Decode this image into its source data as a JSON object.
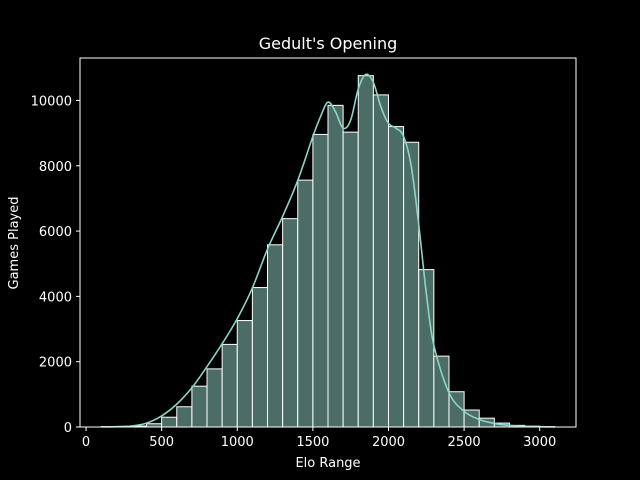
{
  "chart_data": {
    "type": "bar",
    "title": "Gedult's Opening",
    "xlabel": "Elo Range",
    "ylabel": "Games Played",
    "xlim": [
      -40,
      3240
    ],
    "ylim": [
      0,
      11300
    ],
    "x_ticks": [
      0,
      500,
      1000,
      1500,
      2000,
      2500,
      3000
    ],
    "y_ticks": [
      0,
      2000,
      4000,
      6000,
      8000,
      10000
    ],
    "bin_width": 100,
    "bins": [
      {
        "x0": 100,
        "x1": 200,
        "value": 10
      },
      {
        "x0": 200,
        "x1": 300,
        "value": 15
      },
      {
        "x0": 300,
        "x1": 400,
        "value": 30
      },
      {
        "x0": 400,
        "x1": 500,
        "value": 100
      },
      {
        "x0": 500,
        "x1": 600,
        "value": 300
      },
      {
        "x0": 600,
        "x1": 700,
        "value": 620
      },
      {
        "x0": 700,
        "x1": 800,
        "value": 1250
      },
      {
        "x0": 800,
        "x1": 900,
        "value": 1780
      },
      {
        "x0": 900,
        "x1": 1000,
        "value": 2530
      },
      {
        "x0": 1000,
        "x1": 1100,
        "value": 3260
      },
      {
        "x0": 1100,
        "x1": 1200,
        "value": 4270
      },
      {
        "x0": 1200,
        "x1": 1300,
        "value": 5580
      },
      {
        "x0": 1300,
        "x1": 1400,
        "value": 6380
      },
      {
        "x0": 1400,
        "x1": 1500,
        "value": 7560
      },
      {
        "x0": 1500,
        "x1": 1600,
        "value": 8960
      },
      {
        "x0": 1600,
        "x1": 1700,
        "value": 9850
      },
      {
        "x0": 1700,
        "x1": 1800,
        "value": 9030
      },
      {
        "x0": 1800,
        "x1": 1900,
        "value": 10760
      },
      {
        "x0": 1900,
        "x1": 2000,
        "value": 10170
      },
      {
        "x0": 2000,
        "x1": 2100,
        "value": 9200
      },
      {
        "x0": 2100,
        "x1": 2200,
        "value": 8720
      },
      {
        "x0": 2200,
        "x1": 2300,
        "value": 4820
      },
      {
        "x0": 2300,
        "x1": 2400,
        "value": 2170
      },
      {
        "x0": 2400,
        "x1": 2500,
        "value": 1080
      },
      {
        "x0": 2500,
        "x1": 2600,
        "value": 520
      },
      {
        "x0": 2600,
        "x1": 2700,
        "value": 270
      },
      {
        "x0": 2700,
        "x1": 2800,
        "value": 120
      },
      {
        "x0": 2800,
        "x1": 2900,
        "value": 50
      },
      {
        "x0": 2900,
        "x1": 3000,
        "value": 25
      },
      {
        "x0": 3000,
        "x1": 3100,
        "value": 10
      }
    ],
    "kde_curve": {
      "x": [
        100,
        200,
        300,
        400,
        500,
        600,
        700,
        800,
        900,
        1000,
        1100,
        1200,
        1300,
        1400,
        1500,
        1550,
        1600,
        1650,
        1700,
        1750,
        1800,
        1850,
        1900,
        1950,
        2000,
        2050,
        2100,
        2150,
        2200,
        2250,
        2300,
        2400,
        2500,
        2600,
        2700,
        2800,
        2900,
        3000,
        3100
      ],
      "y": [
        5,
        10,
        30,
        120,
        340,
        700,
        1200,
        1850,
        2550,
        3320,
        4260,
        5450,
        6450,
        7550,
        8900,
        9500,
        9950,
        9650,
        9150,
        9400,
        10350,
        10800,
        10550,
        9800,
        9300,
        9150,
        8900,
        8000,
        6200,
        4100,
        2500,
        1050,
        480,
        230,
        110,
        50,
        20,
        8,
        3
      ]
    },
    "grid": false,
    "legend": "none",
    "colors": {
      "background": "#000000",
      "bar_fill": "#4c6d66",
      "bar_edge": "#ffffff",
      "kde_line": "#8dd3c7",
      "axes": "#ffffff",
      "text": "#ffffff"
    }
  }
}
